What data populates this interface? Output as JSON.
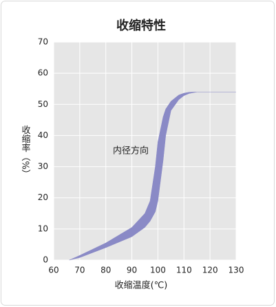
{
  "chart_data": {
    "type": "band",
    "title": "收缩特性",
    "x_label": "收缩温度(℃)",
    "y_label": "收缩率（%）",
    "annotation": "内径方向",
    "x": [
      66,
      70,
      80,
      90,
      95,
      97,
      99,
      100,
      102,
      103,
      105,
      108,
      110,
      112,
      115,
      130
    ],
    "series": [
      {
        "color": "#8a8ac6",
        "values": [
          0,
          1.5,
          5.5,
          10.5,
          15,
          19,
          30,
          38,
          46,
          48.5,
          51,
          53,
          53.6,
          53.9,
          54,
          54
        ]
      },
      {
        "color": "#8a8ac6",
        "values": [
          0,
          0.8,
          4,
          7.5,
          10.5,
          12.5,
          15.5,
          19,
          32,
          40,
          48,
          51.5,
          52.8,
          53.5,
          54,
          54
        ]
      }
    ],
    "xlim": [
      60,
      130
    ],
    "xticks": [
      60,
      70,
      80,
      90,
      100,
      110,
      120,
      130
    ],
    "ylim": [
      0,
      70
    ],
    "yticks": [
      0,
      10,
      20,
      30,
      40,
      50,
      60,
      70
    ],
    "grid": true
  }
}
